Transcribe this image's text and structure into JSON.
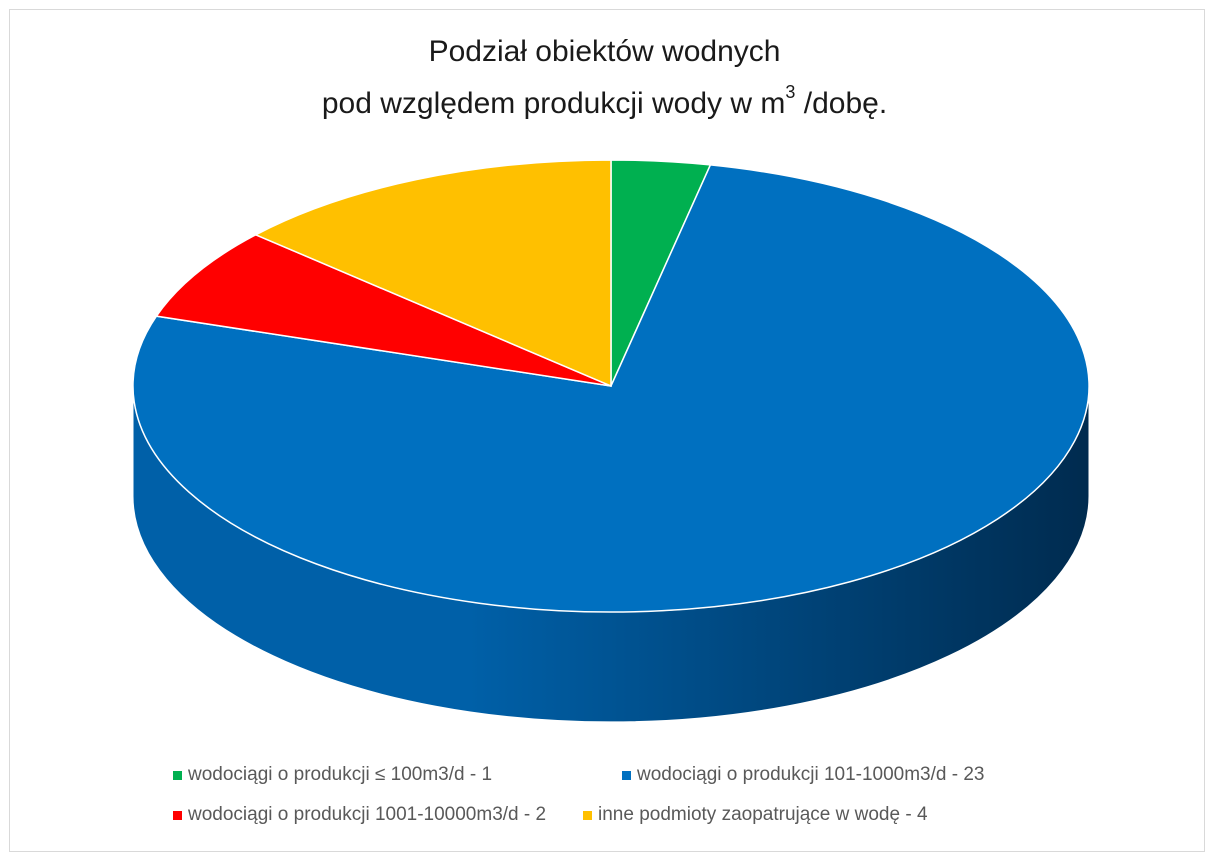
{
  "title": {
    "line1": "Podział obiektów wodnych",
    "line2_prefix": "pod względem produkcji wody w m",
    "line2_sup": "3",
    "line2_suffix": " /dobę."
  },
  "chart_data": {
    "type": "pie",
    "style": "3d",
    "legend_position": "bottom",
    "slices": [
      {
        "label": "wodociągi o produkcji ≤ 100m3/d - 1",
        "value": 1,
        "color": "#00b050"
      },
      {
        "label": "wodociągi o produkcji 101-1000m3/d - 23",
        "value": 23,
        "color": "#0070c0"
      },
      {
        "label": "wodociągi o produkcji 1001-10000m3/d  - 2",
        "value": 2,
        "color": "#ff0000"
      },
      {
        "label": "inne podmioty zaopatrujące w wodę - 4",
        "value": 4,
        "color": "#ffc000"
      }
    ],
    "side_color_dark": "#002b4f",
    "side_color_light": "#0060a8"
  }
}
